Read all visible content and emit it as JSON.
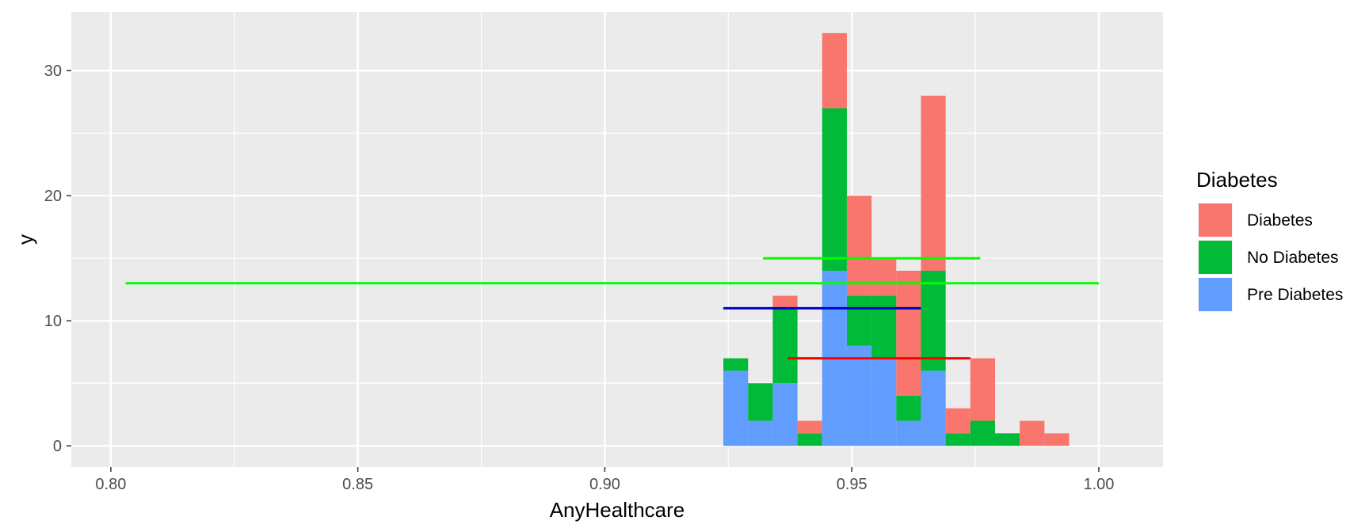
{
  "chart_data": {
    "type": "bar",
    "stacked": true,
    "xlabel": "AnyHealthcare",
    "ylabel": "y",
    "xlim": [
      0.792,
      1.013
    ],
    "ylim": [
      -1.7,
      34.7
    ],
    "x_ticks": [
      0.8,
      0.85,
      0.9,
      0.95,
      1.0
    ],
    "x_tick_labels": [
      "0.80",
      "0.85",
      "0.90",
      "0.95",
      "1.00"
    ],
    "y_ticks": [
      0,
      10,
      20,
      30
    ],
    "y_tick_labels": [
      "0",
      "10",
      "20",
      "30"
    ],
    "grid": true,
    "legend": {
      "title": "Diabetes",
      "position": "right",
      "items": [
        {
          "label": "Diabetes",
          "color": "#F8766D"
        },
        {
          "label": "No Diabetes",
          "color": "#00BA38"
        },
        {
          "label": "Pre Diabetes",
          "color": "#619CFF"
        }
      ]
    },
    "bin_width": 0.005,
    "bin_starts": [
      0.924,
      0.929,
      0.934,
      0.939,
      0.944,
      0.949,
      0.954,
      0.959,
      0.964,
      0.969,
      0.974,
      0.979,
      0.984,
      0.989
    ],
    "series": [
      {
        "name": "Pre Diabetes",
        "color": "#619CFF",
        "values": [
          6,
          2,
          5,
          0,
          14,
          8,
          7,
          2,
          6,
          0,
          0,
          0,
          0,
          0
        ]
      },
      {
        "name": "No Diabetes",
        "color": "#00BA38",
        "values": [
          1,
          3,
          6,
          1,
          13,
          4,
          5,
          2,
          8,
          1,
          2,
          1,
          0,
          0
        ]
      },
      {
        "name": "Diabetes",
        "color": "#F8766D",
        "values": [
          0,
          0,
          1,
          1,
          6,
          8,
          3,
          10,
          14,
          2,
          5,
          0,
          2,
          1
        ]
      }
    ],
    "segments": [
      {
        "x_start": 0.803,
        "x_end": 1.0,
        "y": 13,
        "color": "#00FF00"
      },
      {
        "x_start": 0.932,
        "x_end": 0.976,
        "y": 15,
        "color": "#00FF00"
      },
      {
        "x_start": 0.924,
        "x_end": 0.964,
        "y": 11,
        "color": "#0000CC"
      },
      {
        "x_start": 0.937,
        "x_end": 0.974,
        "y": 7,
        "color": "#FF0000"
      }
    ]
  }
}
